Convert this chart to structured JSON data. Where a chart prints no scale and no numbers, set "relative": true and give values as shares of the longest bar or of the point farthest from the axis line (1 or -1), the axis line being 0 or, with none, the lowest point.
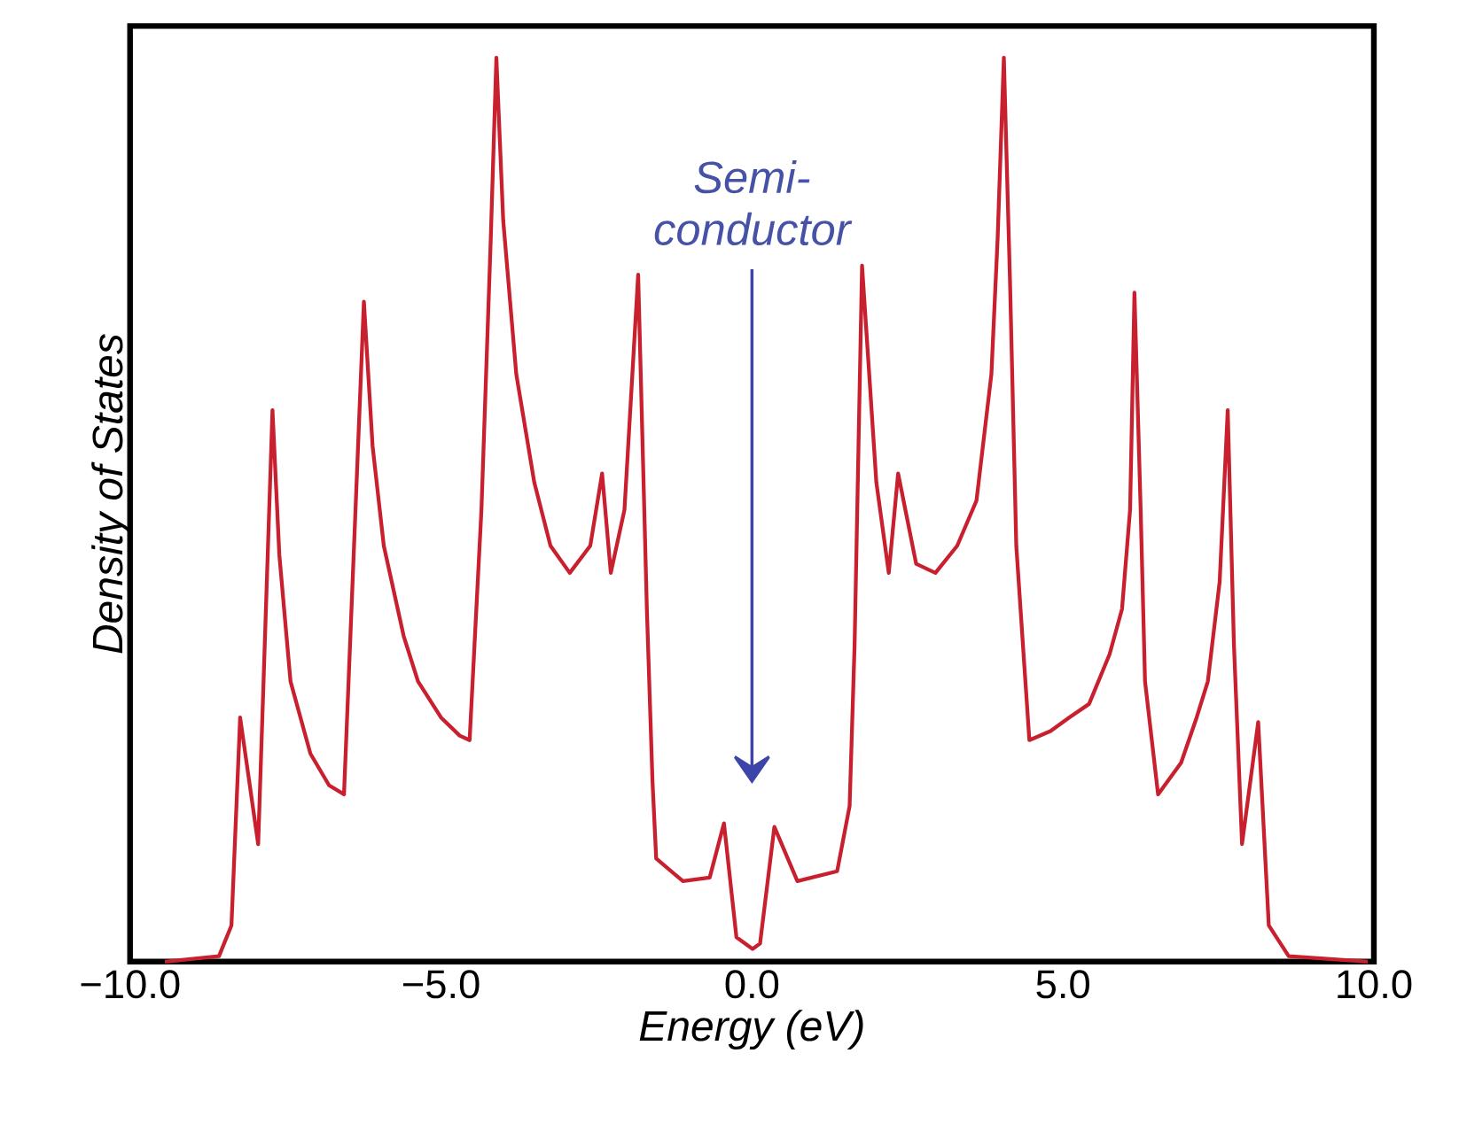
{
  "chart_data": {
    "type": "line",
    "xlabel": "Energy (eV)",
    "ylabel": "Density of States",
    "relative": true,
    "xlim": [
      -10,
      10
    ],
    "xticks": [
      {
        "value": -10,
        "label": "−10.0"
      },
      {
        "value": -5,
        "label": "−5.0"
      },
      {
        "value": 0,
        "label": "0.0"
      },
      {
        "value": 5,
        "label": "5.0"
      },
      {
        "value": 10,
        "label": "10.0"
      }
    ],
    "annotations": [
      "Semi-conductor"
    ],
    "x": [
      -9.44,
      -8.57,
      -8.37,
      -8.23,
      -7.94,
      -7.71,
      -7.6,
      -7.42,
      -7.1,
      -6.8,
      -6.56,
      -6.24,
      -6.1,
      -5.92,
      -5.6,
      -5.37,
      -5.0,
      -4.7,
      -4.54,
      -4.35,
      -4.2,
      -4.11,
      -4.0,
      -3.79,
      -3.5,
      -3.24,
      -2.93,
      -2.6,
      -2.41,
      -2.27,
      -2.05,
      -1.83,
      -1.69,
      -1.6,
      -1.54,
      -1.11,
      -0.68,
      -0.45,
      -0.25,
      0.01,
      0.13,
      0.36,
      0.73,
      1.37,
      1.57,
      1.65,
      1.77,
      2.0,
      2.2,
      2.35,
      2.64,
      2.95,
      3.3,
      3.61,
      3.85,
      3.95,
      4.05,
      4.15,
      4.25,
      4.46,
      4.8,
      5.1,
      5.42,
      5.75,
      5.95,
      6.08,
      6.15,
      6.25,
      6.32,
      6.53,
      6.9,
      7.15,
      7.33,
      7.52,
      7.65,
      7.75,
      7.88,
      8.14,
      8.31,
      8.63,
      9.9
    ],
    "series": [
      {
        "color": "#c8202f",
        "values": [
          0,
          0.006,
          0.04,
          0.27,
          0.13,
          0.61,
          0.45,
          0.31,
          0.23,
          0.195,
          0.185,
          0.73,
          0.57,
          0.46,
          0.36,
          0.31,
          0.27,
          0.25,
          0.245,
          0.5,
          0.8,
          1.0,
          0.82,
          0.65,
          0.53,
          0.46,
          0.43,
          0.46,
          0.54,
          0.43,
          0.5,
          0.76,
          0.39,
          0.2,
          0.114,
          0.089,
          0.093,
          0.153,
          0.027,
          0.014,
          0.02,
          0.149,
          0.089,
          0.1,
          0.172,
          0.35,
          0.77,
          0.53,
          0.43,
          0.54,
          0.44,
          0.43,
          0.46,
          0.51,
          0.65,
          0.8,
          1.0,
          0.75,
          0.46,
          0.245,
          0.255,
          0.27,
          0.285,
          0.34,
          0.39,
          0.5,
          0.74,
          0.5,
          0.31,
          0.185,
          0.22,
          0.27,
          0.31,
          0.42,
          0.61,
          0.35,
          0.13,
          0.265,
          0.04,
          0.006,
          0
        ]
      }
    ]
  }
}
